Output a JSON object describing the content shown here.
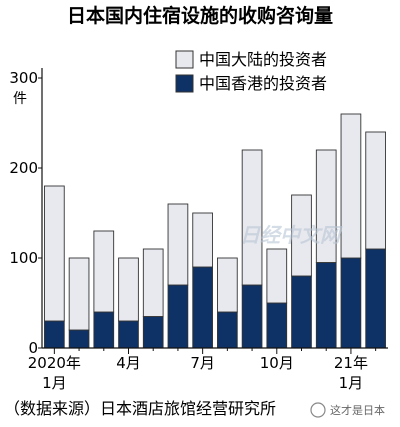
{
  "chart_data": {
    "type": "bar",
    "stacked": true,
    "title": "日本国内住宿设施的收购咨询量",
    "ylabel": "件",
    "ylim": [
      0,
      300
    ],
    "yticks": [
      0,
      100,
      200,
      300
    ],
    "yticks_labels": [
      "0",
      "100",
      "200",
      "300"
    ],
    "categories": [
      "2020-01",
      "2020-02",
      "2020-03",
      "2020-04",
      "2020-05",
      "2020-06",
      "2020-07",
      "2020-08",
      "2020-09",
      "2020-10",
      "2020-11",
      "2020-12",
      "2021-01",
      "2021-02"
    ],
    "x_tick_labels": [
      {
        "index": 0,
        "lines": [
          "2020年",
          "1月"
        ]
      },
      {
        "index": 3,
        "lines": [
          "4月"
        ]
      },
      {
        "index": 6,
        "lines": [
          "7月"
        ]
      },
      {
        "index": 9,
        "lines": [
          "10月"
        ]
      },
      {
        "index": 12,
        "lines": [
          "21年",
          "1月"
        ]
      }
    ],
    "series": [
      {
        "name": "中国香港的投资者",
        "color": "#0e3266",
        "values": [
          30,
          20,
          40,
          30,
          35,
          70,
          90,
          40,
          70,
          50,
          80,
          95,
          100,
          110
        ]
      },
      {
        "name": "中国大陆的投资者",
        "color": "#e8e9ee",
        "values": [
          150,
          80,
          90,
          70,
          75,
          90,
          60,
          60,
          150,
          60,
          90,
          125,
          160,
          130
        ]
      }
    ],
    "legend_position": "top-right",
    "grid": false
  },
  "source": "（数据来源）日本酒店旅馆经营研究所",
  "watermark": "日经中文网",
  "corner_mark": "这才是日本"
}
